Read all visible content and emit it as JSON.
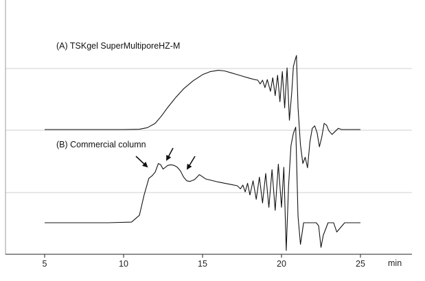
{
  "chart_data": {
    "type": "line",
    "title": "",
    "xlabel": "min",
    "ylabel": "",
    "xlim": [
      5,
      25
    ],
    "x_ticks": [
      5,
      10,
      15,
      20,
      25
    ],
    "grid": "horizontal",
    "annotations": [
      "(A) TSKgel SuperMultiporeHZ-M",
      "(B) Commercial column"
    ],
    "series": [
      {
        "x": [
          5.0,
          7.0,
          9.0,
          10.0,
          11.0,
          11.5,
          12.0,
          12.4,
          12.8,
          13.3,
          13.8,
          14.4,
          15.0,
          15.5,
          16.0,
          16.4,
          16.8,
          17.2,
          17.6,
          18.0,
          18.3,
          18.5,
          18.65,
          18.8,
          18.95,
          19.1,
          19.3,
          19.45,
          19.6,
          19.75,
          19.9,
          20.05,
          20.2,
          20.35,
          20.5,
          20.65,
          20.75,
          20.85,
          20.95,
          21.05,
          21.2,
          21.35,
          21.5,
          21.65,
          21.8,
          21.95,
          22.1,
          22.25,
          22.4,
          22.55,
          22.7,
          22.85,
          23.0,
          23.2,
          23.4,
          23.6,
          23.8,
          24.0,
          24.5,
          25.0
        ],
        "y": [
          0.0,
          0.0,
          0.0,
          0.0,
          0.005,
          0.03,
          0.1,
          0.22,
          0.36,
          0.52,
          0.66,
          0.79,
          0.89,
          0.94,
          0.96,
          0.95,
          0.92,
          0.89,
          0.86,
          0.83,
          0.81,
          0.8,
          0.74,
          0.8,
          0.68,
          0.81,
          0.62,
          0.84,
          0.55,
          0.88,
          0.45,
          0.94,
          0.35,
          1.0,
          0.15,
          0.6,
          1.02,
          1.12,
          1.2,
          0.35,
          -0.25,
          -0.55,
          -0.45,
          -0.62,
          -0.2,
          0.02,
          0.06,
          -0.05,
          -0.28,
          -0.12,
          0.1,
          0.07,
          -0.02,
          -0.08,
          -0.03,
          0.02,
          0.0,
          0.0,
          0.0,
          0.0
        ]
      },
      {
        "x": [
          5.0,
          7.0,
          9.0,
          10.5,
          11.0,
          11.3,
          11.6,
          11.8,
          12.0,
          12.2,
          12.35,
          12.5,
          12.65,
          12.8,
          13.0,
          13.2,
          13.4,
          13.6,
          13.8,
          14.0,
          14.2,
          14.5,
          14.8,
          15.2,
          16.0,
          16.8,
          17.2,
          17.4,
          17.55,
          17.7,
          17.85,
          18.0,
          18.2,
          18.4,
          18.6,
          18.8,
          19.0,
          19.2,
          19.4,
          19.6,
          19.8,
          20.0,
          20.15,
          20.3,
          20.45,
          20.6,
          20.75,
          20.9,
          21.05,
          21.2,
          21.4,
          21.6,
          21.8,
          22.0,
          22.2,
          22.35,
          22.5,
          22.65,
          22.8,
          22.95,
          23.1,
          23.3,
          23.5,
          24.0,
          24.5,
          25.0
        ],
        "y": [
          0.0,
          0.0,
          0.0,
          0.01,
          0.12,
          0.45,
          0.72,
          0.76,
          0.82,
          0.96,
          0.94,
          0.87,
          0.9,
          0.93,
          0.94,
          0.93,
          0.9,
          0.84,
          0.74,
          0.68,
          0.67,
          0.7,
          0.78,
          0.71,
          0.66,
          0.62,
          0.6,
          0.55,
          0.61,
          0.5,
          0.64,
          0.45,
          0.68,
          0.38,
          0.74,
          0.32,
          0.8,
          0.25,
          0.86,
          0.2,
          0.95,
          0.25,
          0.9,
          -0.45,
          0.6,
          1.25,
          1.45,
          1.55,
          0.1,
          -0.35,
          0.0,
          0.0,
          0.0,
          0.0,
          0.0,
          -0.05,
          -0.4,
          -0.2,
          -0.1,
          0.0,
          0.0,
          0.0,
          -0.15,
          0.0,
          0.0,
          0.0
        ]
      }
    ]
  }
}
